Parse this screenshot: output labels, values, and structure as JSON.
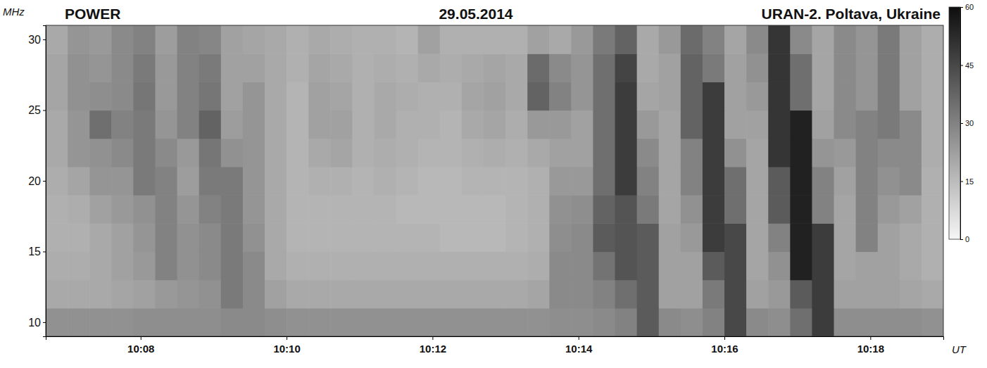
{
  "chart_data": {
    "type": "heatmap",
    "title": "POWER",
    "subtitle": "29.05.2014",
    "annotations": [
      "URAN-2. Poltava, Ukraine"
    ],
    "x_label": "UT",
    "y_label": "MHz",
    "xlim": [
      606.7,
      619
    ],
    "xticks": [
      {
        "value": 608,
        "label": "10:08"
      },
      {
        "value": 610,
        "label": "10:10"
      },
      {
        "value": 612,
        "label": "10:12"
      },
      {
        "value": 614,
        "label": "10:14"
      },
      {
        "value": 616,
        "label": "10:16"
      },
      {
        "value": 618,
        "label": "10:18"
      }
    ],
    "ylim": [
      9,
      31
    ],
    "yticks": [
      10,
      15,
      20,
      25,
      30
    ],
    "x_bins": [
      606.7,
      607,
      607.3,
      607.6,
      607.9,
      608.2,
      608.5,
      608.8,
      609.1,
      609.4,
      609.7,
      610,
      610.3,
      610.6,
      610.9,
      611.2,
      611.5,
      611.8,
      612.1,
      612.4,
      612.7,
      613,
      613.3,
      613.6,
      613.9,
      614.2,
      614.5,
      614.8,
      615.1,
      615.4,
      615.7,
      616,
      616.3,
      616.6,
      616.9,
      617.2,
      617.5,
      617.8,
      618.1,
      618.4,
      618.7,
      619
    ],
    "y_bins": [
      9,
      11,
      13,
      15,
      17,
      19,
      21,
      23,
      25,
      27,
      29,
      31
    ],
    "cells": [
      [
        26,
        26,
        26,
        26,
        27,
        27,
        27,
        27,
        28,
        28,
        27,
        26,
        26,
        26,
        26,
        26,
        26,
        26,
        26,
        26,
        26,
        26,
        26,
        27,
        27,
        28,
        30,
        40,
        28,
        27,
        30,
        45,
        28,
        27,
        35,
        48,
        27,
        27,
        27,
        27,
        26
      ],
      [
        20,
        20,
        20,
        21,
        22,
        24,
        25,
        26,
        32,
        28,
        22,
        20,
        20,
        20,
        20,
        20,
        20,
        20,
        20,
        20,
        20,
        20,
        21,
        28,
        28,
        30,
        35,
        40,
        22,
        22,
        32,
        45,
        22,
        24,
        40,
        48,
        22,
        22,
        22,
        21,
        20
      ],
      [
        19,
        19,
        20,
        22,
        24,
        30,
        26,
        28,
        32,
        28,
        20,
        18,
        18,
        18,
        18,
        18,
        18,
        18,
        18,
        18,
        18,
        18,
        19,
        28,
        28,
        34,
        42,
        40,
        22,
        22,
        40,
        45,
        21,
        26,
        55,
        48,
        21,
        22,
        22,
        20,
        18
      ],
      [
        18,
        18,
        20,
        22,
        25,
        30,
        26,
        28,
        32,
        26,
        20,
        17,
        17,
        17,
        17,
        17,
        17,
        17,
        16,
        16,
        16,
        17,
        18,
        27,
        28,
        40,
        42,
        40,
        22,
        24,
        48,
        45,
        21,
        30,
        55,
        48,
        21,
        30,
        22,
        20,
        18
      ],
      [
        18,
        19,
        22,
        24,
        26,
        30,
        25,
        30,
        32,
        25,
        20,
        17,
        17,
        17,
        17,
        17,
        16,
        16,
        16,
        16,
        16,
        17,
        18,
        26,
        27,
        38,
        42,
        32,
        21,
        26,
        48,
        35,
        21,
        40,
        55,
        30,
        21,
        30,
        24,
        22,
        18
      ],
      [
        19,
        21,
        25,
        25,
        32,
        30,
        23,
        32,
        32,
        25,
        20,
        17,
        18,
        18,
        17,
        18,
        17,
        16,
        16,
        17,
        17,
        17,
        18,
        24,
        24,
        35,
        48,
        30,
        21,
        30,
        48,
        35,
        21,
        40,
        55,
        30,
        22,
        30,
        26,
        28,
        18
      ],
      [
        20,
        25,
        26,
        28,
        32,
        28,
        24,
        33,
        26,
        25,
        20,
        17,
        20,
        21,
        18,
        19,
        18,
        17,
        17,
        18,
        19,
        18,
        20,
        22,
        22,
        35,
        48,
        28,
        21,
        30,
        48,
        26,
        21,
        50,
        55,
        25,
        24,
        30,
        28,
        28,
        19
      ],
      [
        20,
        25,
        35,
        30,
        32,
        25,
        30,
        38,
        23,
        25,
        20,
        17,
        22,
        22,
        18,
        20,
        18,
        18,
        17,
        20,
        21,
        19,
        24,
        24,
        22,
        35,
        48,
        24,
        21,
        38,
        48,
        22,
        22,
        50,
        55,
        22,
        28,
        30,
        32,
        28,
        19
      ],
      [
        21,
        26,
        27,
        28,
        33,
        24,
        30,
        33,
        22,
        25,
        20,
        17,
        22,
        21,
        18,
        20,
        19,
        18,
        18,
        21,
        22,
        20,
        38,
        30,
        25,
        35,
        48,
        21,
        22,
        38,
        48,
        22,
        24,
        50,
        35,
        21,
        28,
        25,
        32,
        22,
        19
      ],
      [
        21,
        26,
        25,
        28,
        32,
        24,
        30,
        32,
        22,
        22,
        20,
        18,
        21,
        20,
        18,
        19,
        18,
        20,
        19,
        20,
        21,
        20,
        36,
        28,
        25,
        35,
        46,
        20,
        22,
        38,
        32,
        22,
        26,
        50,
        35,
        21,
        28,
        25,
        32,
        22,
        19
      ],
      [
        20,
        25,
        24,
        28,
        30,
        23,
        30,
        29,
        22,
        21,
        20,
        18,
        20,
        19,
        18,
        18,
        17,
        22,
        18,
        18,
        18,
        18,
        22,
        20,
        24,
        32,
        38,
        20,
        24,
        36,
        30,
        21,
        28,
        50,
        28,
        21,
        28,
        25,
        32,
        22,
        19
      ]
    ],
    "colorbar": {
      "range": [
        0,
        60
      ],
      "ticks": [
        0,
        15,
        30,
        45,
        60
      ]
    }
  }
}
